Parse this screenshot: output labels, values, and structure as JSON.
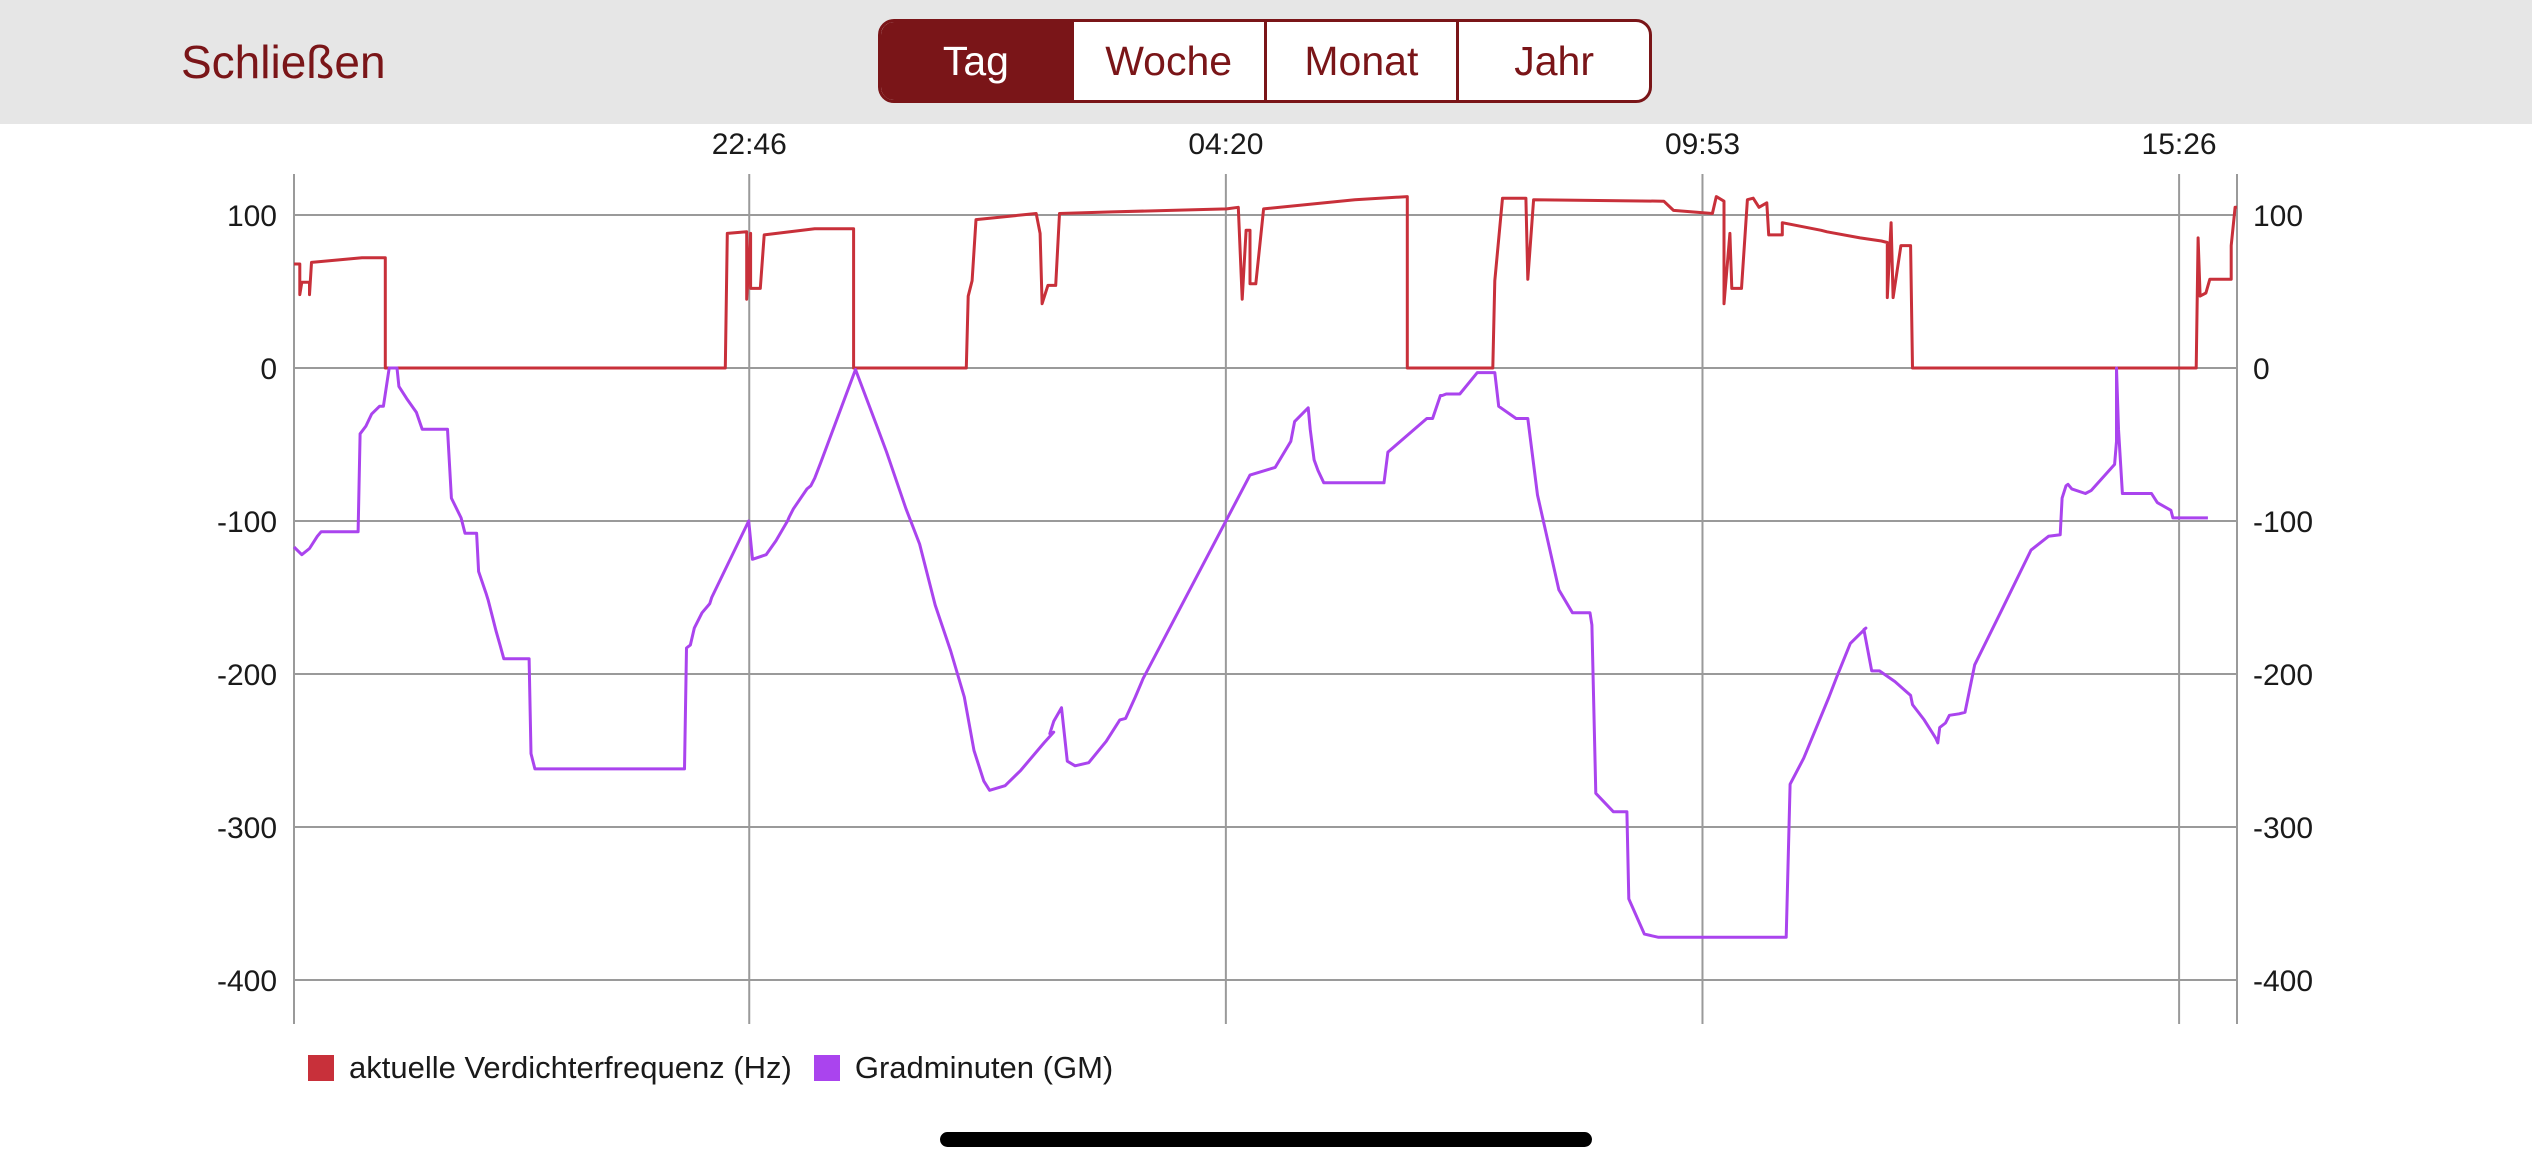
{
  "header": {
    "close_label": "Schließen",
    "tabs": [
      {
        "label": "Tag",
        "active": true
      },
      {
        "label": "Woche",
        "active": false
      },
      {
        "label": "Monat",
        "active": false
      },
      {
        "label": "Jahr",
        "active": false
      }
    ],
    "accent_color": "#7a1518"
  },
  "chart_data": {
    "type": "line",
    "title": "",
    "xlabel": "",
    "ylabel": "",
    "x_tick_labels": [
      "22:46",
      "04:20",
      "09:53",
      "15:26"
    ],
    "xlim": [
      0,
      1
    ],
    "x_ticks": [
      0.2343,
      0.4796,
      0.7249,
      0.9702
    ],
    "ylim": [
      -420,
      125
    ],
    "y_ticks": [
      100,
      0,
      -100,
      -200,
      -300,
      -400
    ],
    "grid": true,
    "legend_position": "bottom-left",
    "series": [
      {
        "name": "aktuelle Verdichterfrequenz (Hz)",
        "color": "#c8303a",
        "points": [
          [
            0.0,
            68
          ],
          [
            0.003,
            68
          ],
          [
            0.003,
            48
          ],
          [
            0.004,
            56
          ],
          [
            0.008,
            56
          ],
          [
            0.008,
            48
          ],
          [
            0.009,
            69
          ],
          [
            0.035,
            72
          ],
          [
            0.047,
            72
          ],
          [
            0.047,
            0
          ],
          [
            0.222,
            0
          ],
          [
            0.223,
            88
          ],
          [
            0.233,
            89
          ],
          [
            0.233,
            45
          ],
          [
            0.235,
            88
          ],
          [
            0.235,
            52
          ],
          [
            0.24,
            52
          ],
          [
            0.242,
            87
          ],
          [
            0.268,
            91
          ],
          [
            0.288,
            91
          ],
          [
            0.288,
            0
          ],
          [
            0.346,
            0
          ],
          [
            0.347,
            47
          ],
          [
            0.349,
            57
          ],
          [
            0.351,
            97
          ],
          [
            0.382,
            101
          ],
          [
            0.384,
            88
          ],
          [
            0.385,
            42
          ],
          [
            0.388,
            54
          ],
          [
            0.392,
            54
          ],
          [
            0.394,
            101
          ],
          [
            0.421,
            102
          ],
          [
            0.48,
            104
          ],
          [
            0.486,
            105
          ],
          [
            0.488,
            45
          ],
          [
            0.49,
            90
          ],
          [
            0.492,
            90
          ],
          [
            0.492,
            55
          ],
          [
            0.495,
            55
          ],
          [
            0.499,
            104
          ],
          [
            0.546,
            110
          ],
          [
            0.573,
            112
          ],
          [
            0.573,
            0
          ],
          [
            0.617,
            0
          ],
          [
            0.618,
            57
          ],
          [
            0.622,
            111
          ],
          [
            0.634,
            111
          ],
          [
            0.635,
            58
          ],
          [
            0.638,
            110
          ],
          [
            0.705,
            109
          ],
          [
            0.71,
            103
          ],
          [
            0.73,
            101
          ],
          [
            0.732,
            112
          ],
          [
            0.736,
            109
          ],
          [
            0.736,
            42
          ],
          [
            0.739,
            88
          ],
          [
            0.74,
            52
          ],
          [
            0.745,
            52
          ],
          [
            0.748,
            110
          ],
          [
            0.751,
            111
          ],
          [
            0.754,
            105
          ],
          [
            0.758,
            108
          ],
          [
            0.759,
            87
          ],
          [
            0.766,
            87
          ],
          [
            0.766,
            95
          ],
          [
            0.786,
            90
          ],
          [
            0.789,
            89
          ],
          [
            0.806,
            85
          ],
          [
            0.817,
            83
          ],
          [
            0.82,
            82
          ],
          [
            0.82,
            46
          ],
          [
            0.822,
            95
          ],
          [
            0.823,
            46
          ],
          [
            0.827,
            80
          ],
          [
            0.832,
            80
          ],
          [
            0.833,
            0
          ],
          [
            0.979,
            0
          ],
          [
            0.98,
            85
          ],
          [
            0.981,
            47
          ],
          [
            0.984,
            49
          ],
          [
            0.986,
            58
          ],
          [
            0.997,
            58
          ],
          [
            0.997,
            80
          ],
          [
            0.999,
            105
          ],
          [
            1.0,
            105
          ]
        ]
      },
      {
        "name": "Gradminuten (GM)",
        "color": "#aa44ee",
        "points": [
          [
            0.0,
            -117
          ],
          [
            0.004,
            -122
          ],
          [
            0.008,
            -118
          ],
          [
            0.012,
            -110
          ],
          [
            0.014,
            -107
          ],
          [
            0.033,
            -107
          ],
          [
            0.034,
            -43
          ],
          [
            0.037,
            -38
          ],
          [
            0.04,
            -30
          ],
          [
            0.044,
            -25
          ],
          [
            0.046,
            -25
          ],
          [
            0.049,
            0
          ],
          [
            0.053,
            0
          ],
          [
            0.054,
            -12
          ],
          [
            0.058,
            -20
          ],
          [
            0.063,
            -29
          ],
          [
            0.066,
            -40
          ],
          [
            0.079,
            -40
          ],
          [
            0.081,
            -85
          ],
          [
            0.086,
            -98
          ],
          [
            0.088,
            -108
          ],
          [
            0.094,
            -108
          ],
          [
            0.095,
            -133
          ],
          [
            0.099,
            -148
          ],
          [
            0.1,
            -152
          ],
          [
            0.102,
            -162
          ],
          [
            0.104,
            -172
          ],
          [
            0.106,
            -181
          ],
          [
            0.108,
            -190
          ],
          [
            0.121,
            -190
          ],
          [
            0.122,
            -252
          ],
          [
            0.124,
            -262
          ],
          [
            0.201,
            -262
          ],
          [
            0.202,
            -183
          ],
          [
            0.204,
            -181
          ],
          [
            0.206,
            -170
          ],
          [
            0.21,
            -160
          ],
          [
            0.214,
            -154
          ],
          [
            0.215,
            -150
          ],
          [
            0.234,
            -100
          ],
          [
            0.236,
            -125
          ],
          [
            0.243,
            -122
          ],
          [
            0.248,
            -113
          ],
          [
            0.254,
            -100
          ],
          [
            0.255,
            -97
          ],
          [
            0.257,
            -92
          ],
          [
            0.264,
            -79
          ],
          [
            0.266,
            -77
          ],
          [
            0.268,
            -72
          ],
          [
            0.271,
            -62
          ],
          [
            0.289,
            -1
          ],
          [
            0.3,
            -38
          ],
          [
            0.305,
            -55
          ],
          [
            0.315,
            -92
          ],
          [
            0.322,
            -115
          ],
          [
            0.33,
            -155
          ],
          [
            0.338,
            -185
          ],
          [
            0.345,
            -215
          ],
          [
            0.35,
            -250
          ],
          [
            0.355,
            -270
          ],
          [
            0.358,
            -276
          ],
          [
            0.366,
            -273
          ],
          [
            0.374,
            -263
          ],
          [
            0.386,
            -245
          ],
          [
            0.391,
            -238
          ],
          [
            0.389,
            -239
          ],
          [
            0.391,
            -231
          ],
          [
            0.395,
            -222
          ],
          [
            0.398,
            -257
          ],
          [
            0.402,
            -260
          ],
          [
            0.409,
            -258
          ],
          [
            0.418,
            -244
          ],
          [
            0.425,
            -230
          ],
          [
            0.428,
            -229
          ],
          [
            0.433,
            -215
          ],
          [
            0.437,
            -203
          ],
          [
            0.492,
            -70
          ],
          [
            0.505,
            -65
          ],
          [
            0.513,
            -48
          ],
          [
            0.515,
            -35
          ],
          [
            0.522,
            -26
          ],
          [
            0.523,
            -40
          ],
          [
            0.525,
            -60
          ],
          [
            0.527,
            -67
          ],
          [
            0.53,
            -75
          ],
          [
            0.561,
            -75
          ],
          [
            0.563,
            -55
          ],
          [
            0.583,
            -33
          ],
          [
            0.586,
            -33
          ],
          [
            0.59,
            -18
          ],
          [
            0.591,
            -18
          ],
          [
            0.593,
            -17
          ],
          [
            0.6,
            -17
          ],
          [
            0.609,
            -3
          ],
          [
            0.618,
            -3
          ],
          [
            0.62,
            -25
          ],
          [
            0.629,
            -33
          ],
          [
            0.635,
            -33
          ],
          [
            0.64,
            -83
          ],
          [
            0.651,
            -145
          ],
          [
            0.658,
            -160
          ],
          [
            0.667,
            -160
          ],
          [
            0.668,
            -168
          ],
          [
            0.67,
            -278
          ],
          [
            0.679,
            -290
          ],
          [
            0.686,
            -290
          ],
          [
            0.687,
            -347
          ],
          [
            0.695,
            -370
          ],
          [
            0.702,
            -372
          ],
          [
            0.768,
            -372
          ],
          [
            0.77,
            -272
          ],
          [
            0.777,
            -255
          ],
          [
            0.79,
            -215
          ],
          [
            0.794,
            -202
          ],
          [
            0.801,
            -180
          ],
          [
            0.809,
            -170
          ],
          [
            0.808,
            -171
          ],
          [
            0.812,
            -198
          ],
          [
            0.816,
            -198
          ],
          [
            0.824,
            -205
          ],
          [
            0.832,
            -214
          ],
          [
            0.833,
            -220
          ],
          [
            0.839,
            -230
          ],
          [
            0.843,
            -238
          ],
          [
            0.845,
            -242
          ],
          [
            0.846,
            -245
          ],
          [
            0.847,
            -235
          ],
          [
            0.85,
            -232
          ],
          [
            0.852,
            -227
          ],
          [
            0.857,
            -226
          ],
          [
            0.86,
            -225
          ],
          [
            0.865,
            -194
          ],
          [
            0.879,
            -158
          ],
          [
            0.894,
            -119
          ],
          [
            0.903,
            -110
          ],
          [
            0.909,
            -109
          ],
          [
            0.91,
            -85
          ],
          [
            0.912,
            -77
          ],
          [
            0.913,
            -76
          ],
          [
            0.915,
            -79
          ],
          [
            0.922,
            -82
          ],
          [
            0.925,
            -80
          ],
          [
            0.937,
            -63
          ],
          [
            0.938,
            -48
          ],
          [
            0.938,
            0
          ],
          [
            0.939,
            -40
          ],
          [
            0.941,
            -82
          ],
          [
            0.942,
            -82
          ],
          [
            0.943,
            -82
          ],
          [
            0.95,
            -82
          ],
          [
            0.954,
            -82
          ],
          [
            0.956,
            -82
          ],
          [
            0.959,
            -88
          ],
          [
            0.966,
            -93
          ],
          [
            0.967,
            -98
          ],
          [
            0.978,
            -98
          ],
          [
            0.984,
            -98
          ],
          [
            0.985,
            -98
          ]
        ]
      }
    ]
  }
}
